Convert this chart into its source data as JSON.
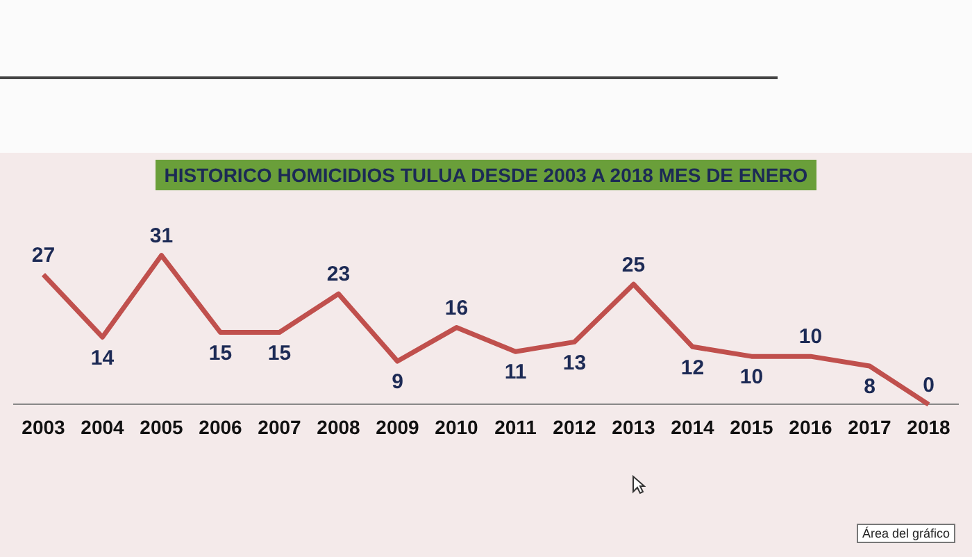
{
  "chart_data": {
    "type": "line",
    "title": "HISTORICO HOMICIDIOS TULUA DESDE 2003 A 2018 MES DE ENERO",
    "categories": [
      "2003",
      "2004",
      "2005",
      "2006",
      "2007",
      "2008",
      "2009",
      "2010",
      "2011",
      "2012",
      "2013",
      "2014",
      "2015",
      "2016",
      "2017",
      "2018"
    ],
    "values": [
      27,
      14,
      31,
      15,
      15,
      23,
      9,
      16,
      11,
      13,
      25,
      12,
      10,
      10,
      8,
      0
    ],
    "color": "#c0504d",
    "data_labels": true,
    "grid": false,
    "legend": false,
    "marker": "none",
    "line_style": "solid",
    "annotations": [
      "Área del gráfico"
    ]
  }
}
